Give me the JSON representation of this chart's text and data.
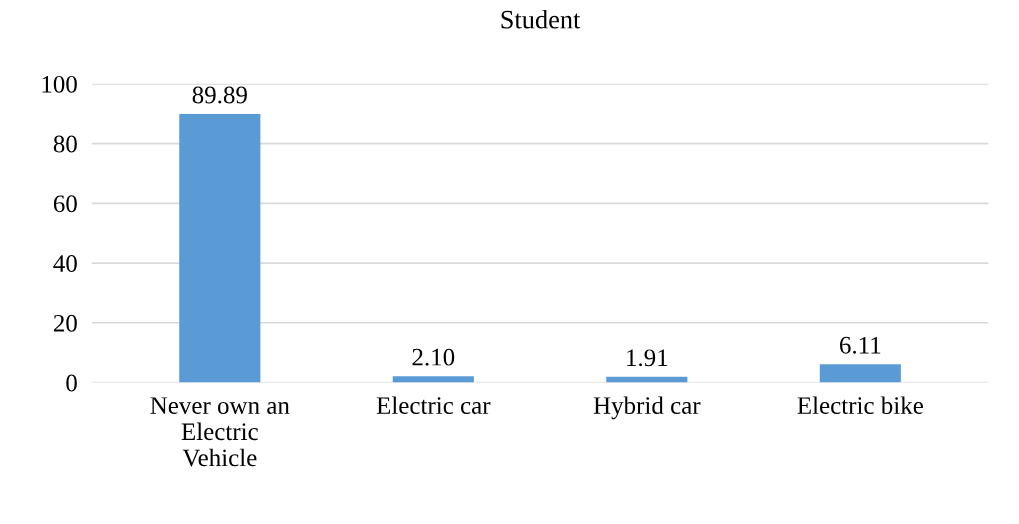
{
  "chart_data": {
    "type": "bar",
    "title": "Student",
    "categories": [
      "Never own an\nElectric\nVehicle",
      "Electric car",
      "Hybrid car",
      "Electric bike"
    ],
    "values": [
      89.89,
      2.1,
      1.91,
      6.11
    ],
    "value_labels": [
      "89.89",
      "2.10",
      "1.91",
      "6.11"
    ],
    "color": "#5b9bd5",
    "ylim": [
      0,
      100
    ],
    "yticks": [
      0,
      20,
      40,
      60,
      80,
      100
    ],
    "grid": "y",
    "legend": false
  }
}
